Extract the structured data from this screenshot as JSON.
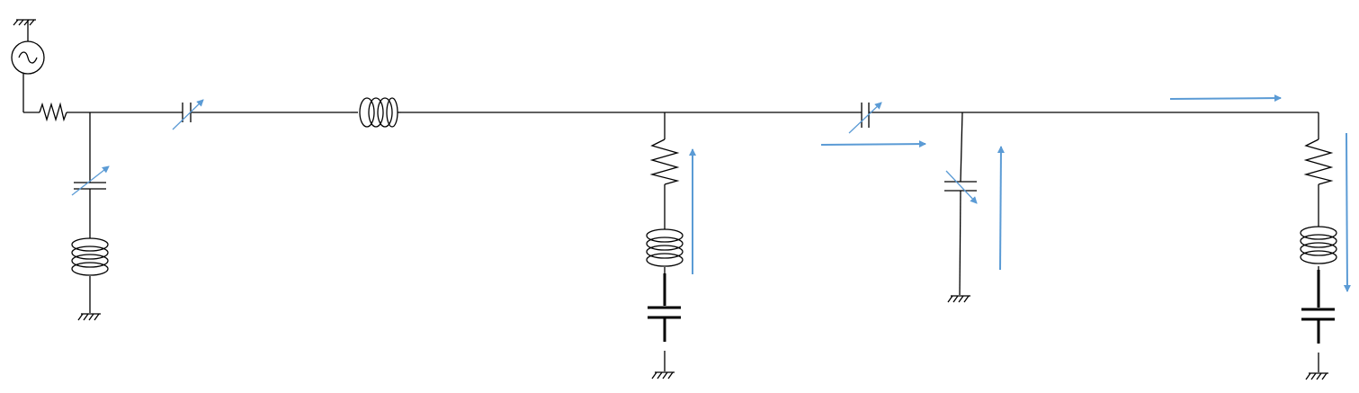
{
  "diagram": {
    "type": "circuit-schematic",
    "background": "#ffffff",
    "wire_color": "#000000",
    "arrow_color": "#5b9bd5",
    "components": [
      {
        "name": "ac-source-symbol"
      },
      {
        "name": "source-ground-symbol"
      },
      {
        "name": "series-resistor-symbol"
      },
      {
        "name": "series-variable-capacitor-symbol"
      },
      {
        "name": "series-inductor-symbol"
      },
      {
        "name": "series-variable-capacitor-2-symbol"
      },
      {
        "name": "shunt-variable-capacitor-1-symbol"
      },
      {
        "name": "shunt-inductor-1-symbol"
      },
      {
        "name": "shunt-ground-1-symbol"
      },
      {
        "name": "branch-2-resistor-symbol"
      },
      {
        "name": "branch-2-inductor-symbol"
      },
      {
        "name": "branch-2-capacitor-symbol"
      },
      {
        "name": "branch-2-ground-symbol"
      },
      {
        "name": "shunt-variable-capacitor-3-symbol"
      },
      {
        "name": "shunt-ground-3-symbol"
      },
      {
        "name": "branch-4-resistor-symbol"
      },
      {
        "name": "branch-4-inductor-symbol"
      },
      {
        "name": "branch-4-capacitor-symbol"
      },
      {
        "name": "branch-4-ground-symbol"
      }
    ],
    "current_arrows": [
      {
        "name": "current-arrow-branch-2-up",
        "direction": "up"
      },
      {
        "name": "current-arrow-mid-right",
        "direction": "right"
      },
      {
        "name": "current-arrow-branch-3-up",
        "direction": "up"
      },
      {
        "name": "current-arrow-top-right",
        "direction": "right"
      },
      {
        "name": "current-arrow-branch-4-down",
        "direction": "down"
      }
    ]
  }
}
